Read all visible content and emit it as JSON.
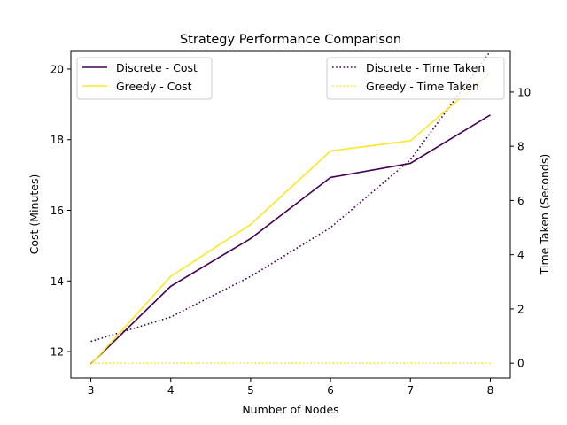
{
  "chart_data": {
    "type": "line",
    "title": "Strategy Performance Comparison",
    "xlabel": "Number of Nodes",
    "ylabel_left": "Cost (Minutes)",
    "ylabel_right": "Time Taken (Seconds)",
    "x": [
      3,
      4,
      5,
      6,
      7,
      8
    ],
    "xlim": [
      2.75,
      8.25
    ],
    "ylim_left": [
      11.25,
      20.5
    ],
    "ylim_right": [
      -0.55,
      11.5
    ],
    "xticks": [
      3,
      4,
      5,
      6,
      7,
      8
    ],
    "yticks_left": [
      12,
      14,
      16,
      18,
      20
    ],
    "yticks_right": [
      0,
      2,
      4,
      6,
      8,
      10
    ],
    "grid": false,
    "series_left": [
      {
        "name": "Discrete - Cost",
        "values": [
          11.65,
          13.85,
          15.2,
          16.93,
          17.33,
          18.7
        ],
        "color": "#440154",
        "style": "solid"
      },
      {
        "name": "Greedy - Cost",
        "values": [
          11.63,
          14.13,
          15.6,
          17.68,
          17.97,
          19.9
        ],
        "color": "#fde725",
        "style": "solid"
      }
    ],
    "series_right": [
      {
        "name": "Discrete - Time Taken",
        "values": [
          0.8,
          1.7,
          3.2,
          5.0,
          7.5,
          11.5
        ],
        "color": "#440154",
        "style": "dotted"
      },
      {
        "name": "Greedy - Time Taken",
        "values": [
          0.0,
          0.0,
          0.0,
          0.0,
          0.0,
          0.0
        ],
        "color": "#fde725",
        "style": "dotted"
      }
    ],
    "legend_left_placement": "upper-left",
    "legend_right_placement": "upper-right"
  }
}
